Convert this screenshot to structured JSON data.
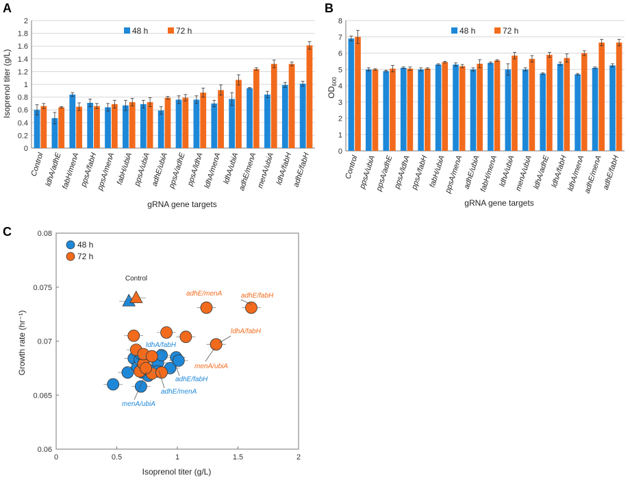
{
  "colors": {
    "h48": "#1e88d8",
    "h72": "#f26b1d",
    "blue_text": "#1e88d8",
    "orange_text": "#f26b1d"
  },
  "legend": {
    "h48": "48 h",
    "h72": "72 h"
  },
  "panels": {
    "a": "A",
    "b": "B",
    "c": "C"
  },
  "chart_data": [
    {
      "type": "bar",
      "title": "",
      "ylabel": "Isoprenol titer (g/L)",
      "xlabel": "gRNA gene targets",
      "ylim": [
        0,
        2
      ],
      "yticks": [
        "0",
        "0.2",
        "0.4",
        "0.6",
        "0.8",
        "1",
        "1.2",
        "1.4",
        "1.6",
        "1.8",
        "2"
      ],
      "categories": [
        "Control",
        "ldhA/adhE",
        "fabH/menA",
        "ppsA/fabH",
        "ppsA/menA",
        "fabH/ubiA",
        "ppsA/ubiA",
        "adhE/ubiA",
        "ppsA/adhE",
        "ppsA/ldhA",
        "ldhA/menA",
        "ldhA/ubiA",
        "adhE/menA",
        "menA/ubiA",
        "ldhA/fabH",
        "adhE/fabH"
      ],
      "series": [
        {
          "name": "48 h",
          "values": [
            0.6,
            0.47,
            0.84,
            0.71,
            0.64,
            0.67,
            0.69,
            0.59,
            0.76,
            0.76,
            0.7,
            0.77,
            0.94,
            0.84,
            0.99,
            1.01
          ],
          "errors": [
            0.08,
            0.09,
            0.03,
            0.06,
            0.06,
            0.08,
            0.06,
            0.06,
            0.06,
            0.06,
            0.05,
            0.1,
            0.01,
            0.05,
            0.04,
            0.04
          ]
        },
        {
          "name": "72 h",
          "values": [
            0.66,
            0.64,
            0.65,
            0.66,
            0.69,
            0.72,
            0.72,
            0.79,
            0.79,
            0.87,
            0.91,
            1.07,
            1.24,
            1.32,
            1.32,
            1.61
          ],
          "errors": [
            0.04,
            0.01,
            0.06,
            0.04,
            0.06,
            0.06,
            0.07,
            0.02,
            0.05,
            0.07,
            0.08,
            0.08,
            0.02,
            0.06,
            0.03,
            0.06
          ]
        }
      ]
    },
    {
      "type": "bar",
      "title": "",
      "ylabel": "OD",
      "ylabel_sub": "600",
      "xlabel": "gRNA gene targets",
      "ylim": [
        0,
        8
      ],
      "yticks": [
        "0",
        "1",
        "2",
        "3",
        "4",
        "5",
        "6",
        "7",
        "8"
      ],
      "categories": [
        "Control",
        "ppsA/ubiA",
        "ppsA/adhE",
        "ppsA/ldhA",
        "ppsA/fabH",
        "fabH/ubiA",
        "ppsA/menA",
        "adhE/ubiA",
        "fabH/menA",
        "ldhA/ubiA",
        "menA/ubiA",
        "ldhA/adhE",
        "ldhA/fabH",
        "ldhA/menA",
        "adhE/menA",
        "adhE/fabH"
      ],
      "series": [
        {
          "name": "48 h",
          "values": [
            6.9,
            5.0,
            4.9,
            5.1,
            5.0,
            5.3,
            5.3,
            5.0,
            5.4,
            5.0,
            5.0,
            4.75,
            5.35,
            4.7,
            5.1,
            5.25
          ],
          "errors": [
            0.15,
            0.1,
            0.05,
            0.05,
            0.1,
            0.05,
            0.1,
            0.1,
            0.05,
            0.35,
            0.1,
            0.05,
            0.1,
            0.05,
            0.05,
            0.1
          ]
        },
        {
          "name": "72 h",
          "values": [
            7.0,
            5.0,
            5.05,
            5.05,
            5.05,
            5.45,
            5.2,
            5.35,
            5.55,
            5.85,
            5.65,
            5.9,
            5.7,
            6.0,
            6.65,
            6.65
          ],
          "errors": [
            0.4,
            0.05,
            0.2,
            0.1,
            0.05,
            0.05,
            0.1,
            0.25,
            0.05,
            0.2,
            0.2,
            0.15,
            0.25,
            0.15,
            0.2,
            0.2
          ]
        }
      ]
    },
    {
      "type": "scatter",
      "xlabel": "Isoprenol titer (g/L)",
      "ylabel": "Growth rate (hr⁻¹)",
      "xlim": [
        0,
        2
      ],
      "ylim": [
        0.06,
        0.08
      ],
      "xticks": [
        "0",
        "0.5",
        "1",
        "1.5",
        "2"
      ],
      "yticks": [
        "0.06",
        "0.065",
        "0.07",
        "0.075",
        "0.08"
      ],
      "series": [
        {
          "name": "48 h",
          "points": [
            {
              "x": 0.47,
              "y": 0.066
            },
            {
              "x": 0.59,
              "y": 0.0671
            },
            {
              "x": 0.64,
              "y": 0.0684
            },
            {
              "x": 0.67,
              "y": 0.0676
            },
            {
              "x": 0.69,
              "y": 0.0683
            },
            {
              "x": 0.7,
              "y": 0.0658
            },
            {
              "x": 0.71,
              "y": 0.0671
            },
            {
              "x": 0.76,
              "y": 0.0668
            },
            {
              "x": 0.77,
              "y": 0.0673
            },
            {
              "x": 0.84,
              "y": 0.068
            },
            {
              "x": 0.84,
              "y": 0.0672
            },
            {
              "x": 0.94,
              "y": 0.0675
            },
            {
              "x": 0.99,
              "y": 0.0685
            },
            {
              "x": 1.01,
              "y": 0.0682
            },
            {
              "x": 0.7,
              "y": 0.0688
            },
            {
              "x": 0.87,
              "y": 0.0687
            }
          ],
          "control": {
            "x": 0.6,
            "y": 0.0737
          }
        },
        {
          "name": "72 h",
          "points": [
            {
              "x": 0.64,
              "y": 0.0705
            },
            {
              "x": 0.66,
              "y": 0.0692
            },
            {
              "x": 0.69,
              "y": 0.0672
            },
            {
              "x": 0.72,
              "y": 0.0679
            },
            {
              "x": 0.72,
              "y": 0.0688
            },
            {
              "x": 0.79,
              "y": 0.067
            },
            {
              "x": 0.79,
              "y": 0.0686
            },
            {
              "x": 0.87,
              "y": 0.0671
            },
            {
              "x": 0.91,
              "y": 0.0708
            },
            {
              "x": 1.07,
              "y": 0.0704
            },
            {
              "x": 1.24,
              "y": 0.0731
            },
            {
              "x": 1.32,
              "y": 0.0697
            },
            {
              "x": 1.32,
              "y": 0.0697
            },
            {
              "x": 1.61,
              "y": 0.0731
            },
            {
              "x": 0.74,
              "y": 0.0675
            }
          ],
          "control": {
            "x": 0.66,
            "y": 0.074
          }
        }
      ],
      "annotations": {
        "control": "Control",
        "adhE_menA_72": "adhE/menA",
        "adhE_fabH_72": "adhE/fabH",
        "ldhA_fabH_72": "ldhA/fabH",
        "menA_ubiA_72": "menA/ubiA",
        "ldhA_fabH_48": "ldhA/fabH",
        "adhE_fabH_48": "adhE/fabH",
        "adhE_menA_48": "adhE/menA",
        "menA_ubiA_48": "menA/ubiA"
      }
    }
  ]
}
